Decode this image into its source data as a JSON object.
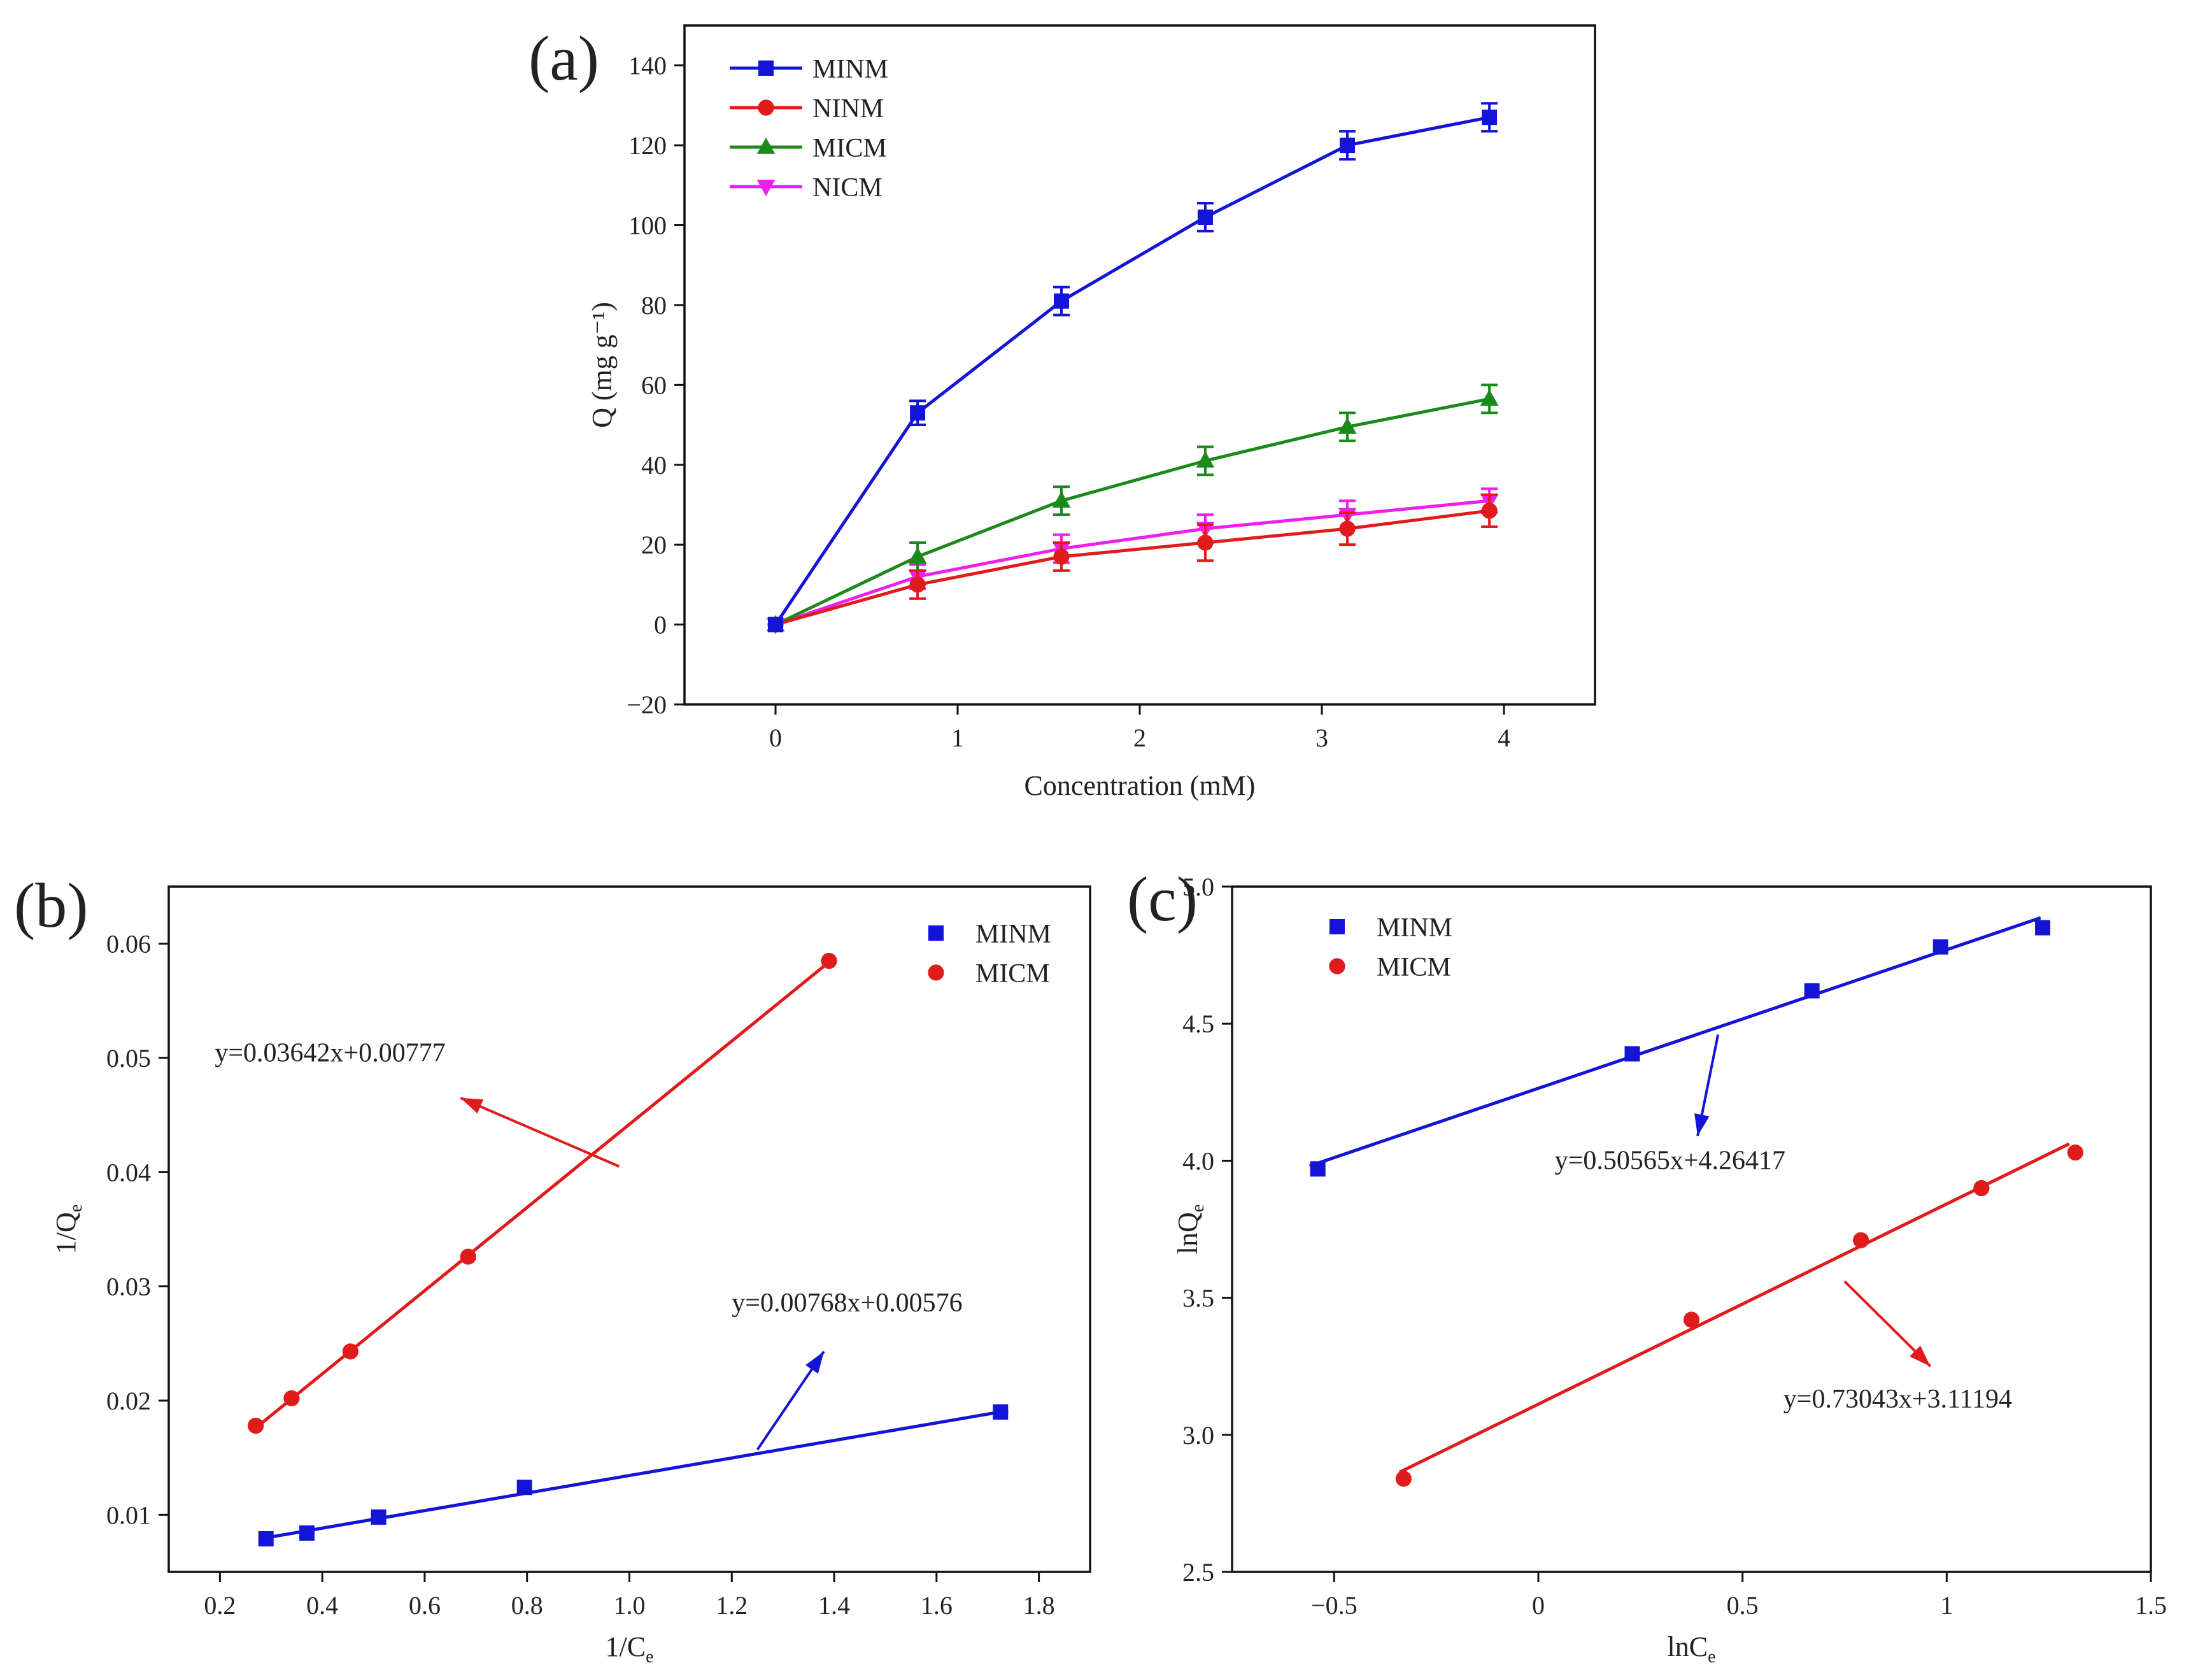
{
  "chart_data": [
    {
      "panel": "(a)",
      "type": "line",
      "title": "",
      "xlabel": "Concentration (mM)",
      "ylabel": "Q (mg g⁻¹)",
      "xlim": [
        -0.5,
        4.5
      ],
      "ylim": [
        -20,
        150
      ],
      "xticks": [
        0,
        1,
        2,
        3,
        4
      ],
      "yticks": [
        -20,
        0,
        20,
        40,
        60,
        80,
        100,
        120,
        140
      ],
      "legend_position": "top-left",
      "x": [
        0,
        0.78,
        1.57,
        2.36,
        3.14,
        3.92
      ],
      "series": [
        {
          "name": "MINM",
          "marker": "square",
          "color": "#1414d6",
          "values": [
            0,
            53,
            81,
            102,
            120,
            127
          ],
          "errors": [
            0,
            3,
            3.5,
            3.5,
            3.5,
            3.5
          ]
        },
        {
          "name": "NINM",
          "marker": "circle",
          "color": "#e01b1b",
          "values": [
            0,
            10,
            17,
            20.5,
            24,
            28.5
          ],
          "errors": [
            0,
            3.5,
            3.5,
            4.5,
            4,
            4
          ]
        },
        {
          "name": "MICM",
          "marker": "triangle-up",
          "color": "#1b8a1b",
          "values": [
            0,
            17,
            31,
            41,
            49.5,
            56.5
          ],
          "errors": [
            0,
            3.5,
            3.5,
            3.5,
            3.5,
            3.5
          ]
        },
        {
          "name": "NICM",
          "marker": "triangle-down",
          "color": "#ee1fee",
          "values": [
            0,
            12,
            19,
            24,
            27.5,
            31
          ],
          "errors": [
            0,
            3,
            3.5,
            3.5,
            3.5,
            3
          ]
        }
      ]
    },
    {
      "panel": "(b)",
      "type": "scatter",
      "title": "",
      "xlabel": "1/C",
      "xlabel_sub": "e",
      "ylabel": "1/Q",
      "ylabel_sub": "e",
      "xlim": [
        0.1,
        1.9
      ],
      "ylim": [
        0.005,
        0.065
      ],
      "xticks": [
        "0.2",
        "0.4",
        "0.6",
        "0.8",
        "1.0",
        "1.2",
        "1.4",
        "1.6",
        "1.8"
      ],
      "yticks": [
        "0.01",
        "0.02",
        "0.03",
        "0.04",
        "0.05",
        "0.06"
      ],
      "legend_position": "top-right",
      "series": [
        {
          "name": "MINM",
          "marker": "square",
          "color": "#1414d6",
          "x": [
            0.29,
            0.37,
            0.51,
            0.795,
            1.725
          ],
          "y": [
            0.0079,
            0.0084,
            0.0098,
            0.0124,
            0.019
          ],
          "fit": {
            "slope": 0.00768,
            "intercept": 0.00576,
            "x_range": [
              0.28,
              1.74
            ]
          }
        },
        {
          "name": "MICM",
          "marker": "circle",
          "color": "#e01b1b",
          "x": [
            0.27,
            0.34,
            0.455,
            0.685,
            1.39
          ],
          "y": [
            0.0178,
            0.0202,
            0.0243,
            0.0326,
            0.0585
          ],
          "fit": {
            "slope": 0.03642,
            "intercept": 0.00777,
            "x_range": [
              0.27,
              1.39
            ]
          }
        }
      ],
      "annotations": [
        {
          "text": "y=0.03642x+0.00777",
          "series": "MICM",
          "arrow_from": [
            0.98,
            0.0405
          ],
          "arrow_to": [
            0.67,
            0.0465
          ],
          "text_at": [
            0.19,
            0.0497
          ]
        },
        {
          "text": "y=0.00768x+0.00576",
          "series": "MINM",
          "arrow_from": [
            1.25,
            0.0157
          ],
          "arrow_to": [
            1.38,
            0.0243
          ],
          "text_at": [
            1.2,
            0.0278
          ]
        }
      ]
    },
    {
      "panel": "(c)",
      "type": "scatter",
      "title": "",
      "xlabel": "lnC",
      "xlabel_sub": "e",
      "ylabel": "lnQ",
      "ylabel_sub": "e",
      "xlim": [
        -0.75,
        1.5
      ],
      "ylim": [
        2.5,
        5.0
      ],
      "xticks": [
        "−0.5",
        "0",
        "0.5",
        "1",
        "1.5"
      ],
      "xtick_values": [
        -0.5,
        0,
        0.5,
        1,
        1.5
      ],
      "yticks": [
        "2.5",
        "3.0",
        "3.5",
        "4.0",
        "4.5",
        "5.0"
      ],
      "legend_position": "top-left",
      "series": [
        {
          "name": "MINM",
          "marker": "square",
          "color": "#1414d6",
          "x": [
            -0.54,
            0.23,
            0.67,
            0.985,
            1.235
          ],
          "y": [
            3.97,
            4.39,
            4.62,
            4.78,
            4.85
          ],
          "fit": {
            "slope": 0.50565,
            "intercept": 4.26417,
            "x_range": [
              -0.56,
              1.23
            ]
          }
        },
        {
          "name": "MICM",
          "marker": "circle",
          "color": "#e01b1b",
          "x": [
            -0.33,
            0.375,
            0.79,
            1.085,
            1.315
          ],
          "y": [
            2.84,
            3.42,
            3.71,
            3.9,
            4.03
          ],
          "fit": {
            "slope": 0.73043,
            "intercept": 3.11194,
            "x_range": [
              -0.34,
              1.3
            ]
          }
        }
      ],
      "annotations": [
        {
          "text": "y=0.50565x+4.26417",
          "series": "MINM",
          "arrow_from": [
            0.44,
            4.46
          ],
          "arrow_to": [
            0.39,
            4.09
          ],
          "text_at": [
            0.04,
            3.97
          ]
        },
        {
          "text": "y=0.73043x+3.11194",
          "series": "MICM",
          "arrow_from": [
            0.75,
            3.56
          ],
          "arrow_to": [
            0.96,
            3.25
          ],
          "text_at": [
            0.6,
            3.1
          ]
        }
      ]
    }
  ]
}
